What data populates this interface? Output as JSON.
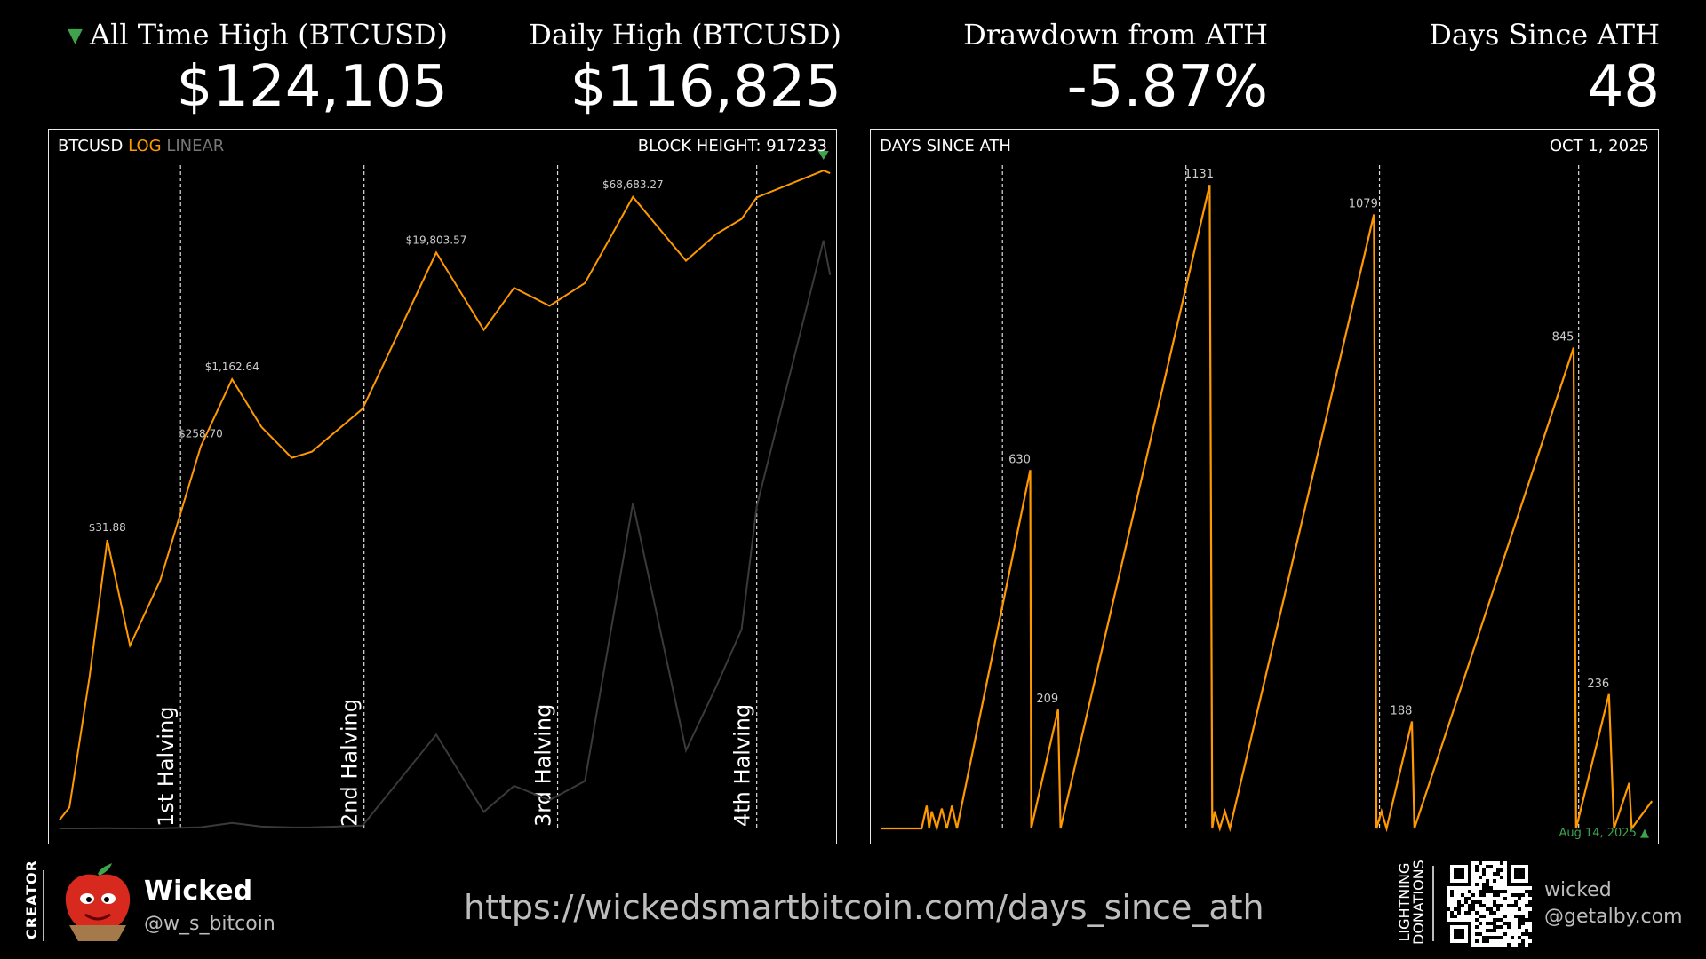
{
  "stats": [
    {
      "label": "All Time High (BTCUSD)",
      "value": "$124,105",
      "marker": "down-triangle"
    },
    {
      "label": "Daily High (BTCUSD)",
      "value": "$116,825"
    },
    {
      "label": "Drawdown from ATH",
      "value": "-5.87%"
    },
    {
      "label": "Days Since ATH",
      "value": "48"
    }
  ],
  "left_panel": {
    "title": "BTCUSD",
    "scale_log": "LOG",
    "scale_linear": "LINEAR",
    "block_height": "BLOCK HEIGHT: 917233"
  },
  "right_panel": {
    "title": "DAYS SINCE ATH",
    "date": "OCT 1, 2025",
    "last_ath": "Aug 14, 2025"
  },
  "footer": {
    "creator_label": "CREATOR",
    "name": "Wicked",
    "handle": "@w_s_bitcoin",
    "url": "https://wickedsmartbitcoin.com/days_since_ath",
    "lightning_label_1": "LIGHTNING",
    "lightning_label_2": "DONATIONS",
    "ln_name": "wicked",
    "ln_addr": "@getalby.com"
  },
  "colors": {
    "accent": "#ff9900",
    "ath_marker": "#3fa34d",
    "linear_series": "#3a3a3a"
  },
  "chart_data": [
    {
      "type": "line",
      "series": [
        {
          "values": [
            0.06,
            0.08,
            1.5,
            31.88,
            3,
            13,
            258.7,
            1162.64,
            400,
            200,
            230,
            600,
            19803.57,
            3500,
            9000,
            6000,
            10000,
            68683.27,
            16500,
            30000,
            42000,
            68000,
            124105,
            116825
          ]
        },
        {
          "values": [
            0.06,
            0.08,
            1.5,
            31.88,
            3,
            13,
            258.7,
            1162.64,
            400,
            200,
            230,
            600,
            19803.57,
            3500,
            9000,
            6000,
            10000,
            68683.27,
            16500,
            30000,
            42000,
            68000,
            124105,
            116825
          ]
        }
      ],
      "x": [
        2010.5,
        2010.7,
        2011.1,
        2011.45,
        2011.9,
        2012.5,
        2013.3,
        2013.92,
        2014.5,
        2015.1,
        2015.5,
        2016.5,
        2017.96,
        2018.9,
        2019.5,
        2020.2,
        2020.9,
        2021.85,
        2022.9,
        2023.5,
        2024.0,
        2024.3,
        2025.62,
        2025.75
      ],
      "log_scale": true,
      "annotations": [
        "$31.88",
        "$258.70",
        "$1,162.64",
        "$19,803.57",
        "$68,683.27"
      ],
      "vlines": [
        "1st Halving",
        "2nd Halving",
        "3rd Halving",
        "4th Halving"
      ],
      "vline_x": [
        2012.9,
        2016.53,
        2020.36,
        2024.3
      ]
    },
    {
      "type": "line",
      "series": [
        {
          "values": [
            0,
            0,
            40,
            0,
            30,
            0,
            35,
            0,
            40,
            0,
            630,
            0,
            209,
            0,
            1131,
            0,
            30,
            0,
            30,
            0,
            1079,
            0,
            30,
            0,
            188,
            0,
            845,
            0,
            236,
            0,
            80,
            0,
            48
          ]
        }
      ],
      "x": [
        2010.5,
        2011.3,
        2011.4,
        2011.45,
        2011.5,
        2011.6,
        2011.7,
        2011.8,
        2011.9,
        2012.0,
        2013.45,
        2013.47,
        2014.0,
        2014.05,
        2017.0,
        2017.05,
        2017.1,
        2017.2,
        2017.3,
        2017.4,
        2020.25,
        2020.3,
        2020.4,
        2020.5,
        2021.0,
        2021.05,
        2024.2,
        2024.25,
        2024.9,
        2025.0,
        2025.3,
        2025.35,
        2025.75
      ],
      "annotations": [
        "630",
        "209",
        "1131",
        "1079",
        "188",
        "845",
        "236"
      ],
      "vline_x": [
        2012.9,
        2016.53,
        2020.36,
        2024.3
      ]
    }
  ]
}
